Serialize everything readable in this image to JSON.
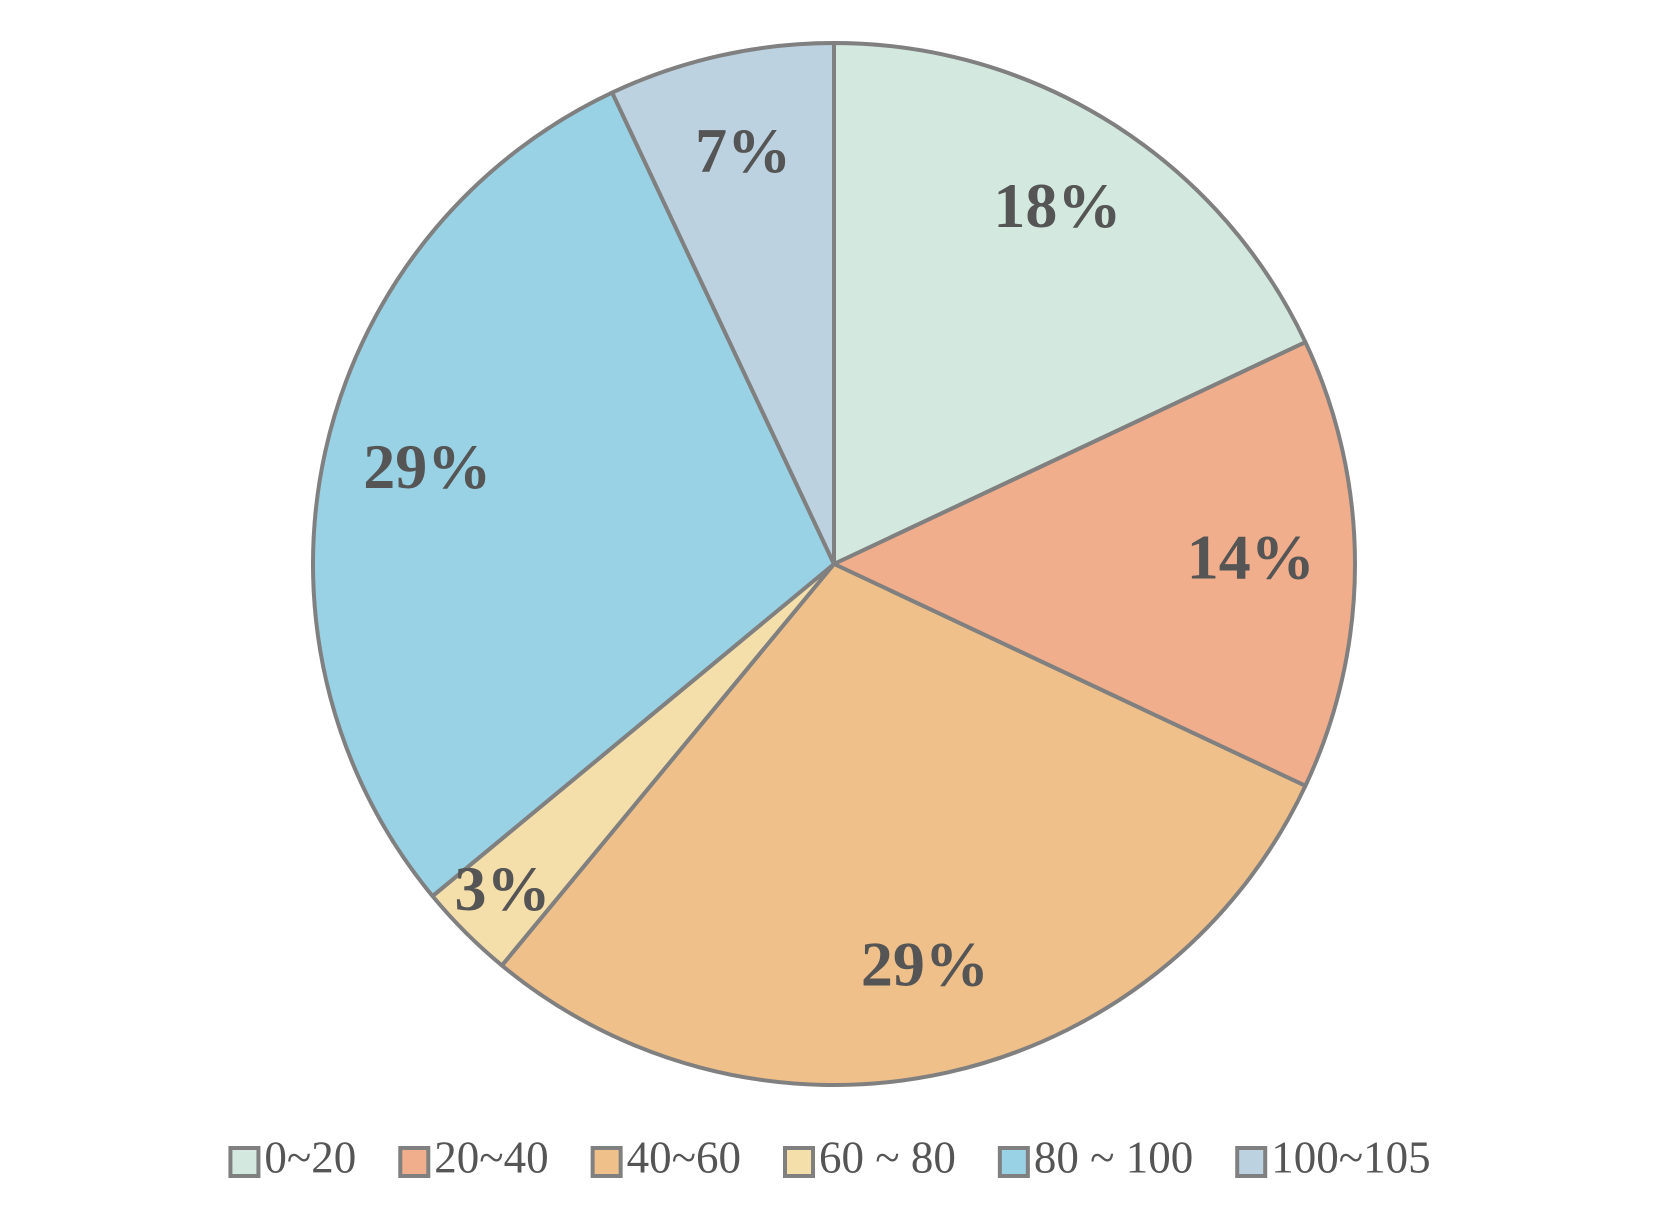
{
  "chart_data": {
    "type": "pie",
    "categories": [
      "0~20",
      "20~40",
      "40~60",
      "60 ~ 80",
      "80 ~ 100",
      "100~105"
    ],
    "values": [
      18,
      14,
      29,
      3,
      29,
      7
    ],
    "value_labels": [
      "18%",
      "14%",
      "29%",
      "3%",
      "29%",
      "7%"
    ],
    "colors": [
      "#d3e9e0",
      "#f0ae8c",
      "#efc08a",
      "#f4deaa",
      "#98d2e4",
      "#bcd2e0"
    ],
    "legend": "bottom"
  }
}
